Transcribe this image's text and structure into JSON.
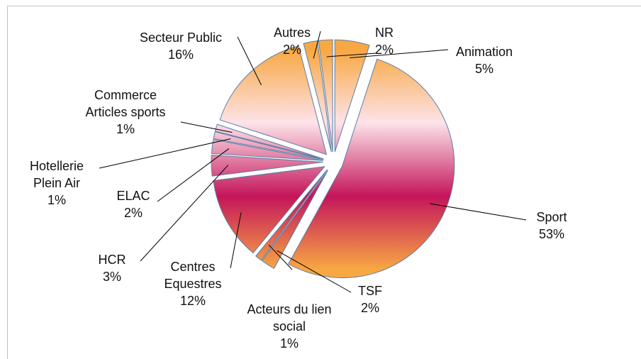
{
  "chart_data": {
    "type": "pie",
    "categories": [
      "Animation",
      "Sport",
      "TSF",
      "Acteurs du lien social",
      "Centres Equestres",
      "HCR",
      "ELAC",
      "Hotellerie Plein Air",
      "Commerce Articles sports",
      "Secteur Public",
      "Autres",
      "NR"
    ],
    "values": [
      5,
      53,
      2,
      1,
      12,
      3,
      2,
      1,
      1,
      16,
      2,
      2
    ],
    "value_labels": [
      "5%",
      "53%",
      "2%",
      "1%",
      "12%",
      "3%",
      "2%",
      "1%",
      "1%",
      "16%",
      "2%",
      "2%"
    ],
    "colors": [
      "#f8a843",
      "#fde3ea",
      "#c4155a",
      "#f8a843"
    ],
    "edge_color": "#5b7fa6"
  }
}
